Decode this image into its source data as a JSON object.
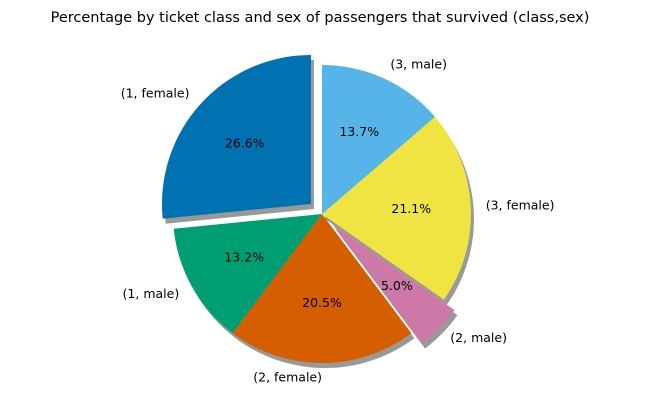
{
  "chart_data": {
    "type": "pie",
    "title": "Percentage by ticket class and sex of passengers that survived (class,sex)",
    "categories": [
      "(1, female)",
      "(1, male)",
      "(2, female)",
      "(2, male)",
      "(3, female)",
      "(3, male)"
    ],
    "values": [
      26.6,
      13.2,
      20.5,
      5.0,
      21.1,
      13.7
    ],
    "value_labels": [
      "26.6%",
      "13.2%",
      "20.5%",
      "5.0%",
      "21.1%",
      "13.7%"
    ],
    "colors": [
      "#0072B2",
      "#009E73",
      "#D55E00",
      "#CC79A7",
      "#F0E442",
      "#56B4E9"
    ],
    "exploded": [
      true,
      false,
      false,
      true,
      false,
      false
    ],
    "shadow": true,
    "start_angle_deg": 90,
    "direction": "counterclockwise"
  }
}
